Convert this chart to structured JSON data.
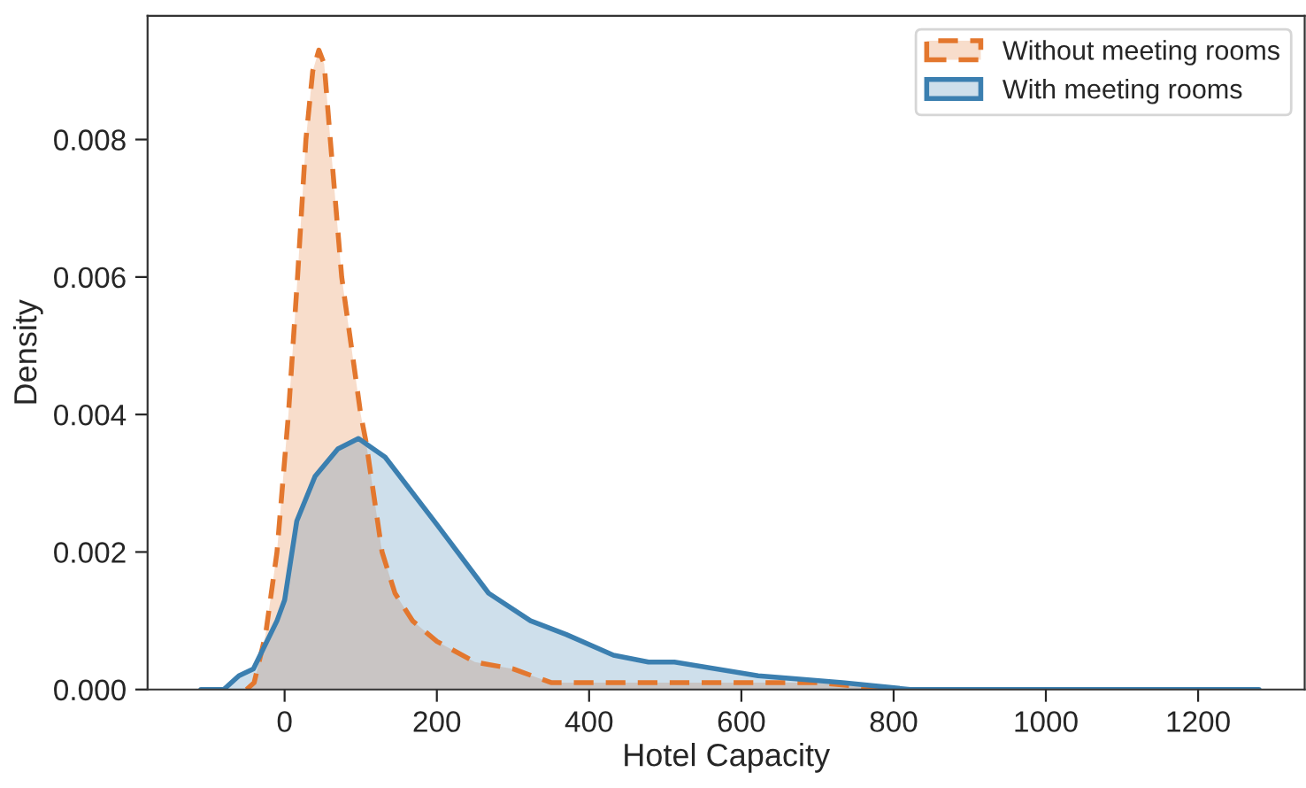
{
  "chart_data": {
    "type": "area",
    "xlabel": "Hotel Capacity",
    "ylabel": "Density",
    "xlim": [
      -180,
      1340
    ],
    "xticks": [
      0,
      200,
      400,
      600,
      800,
      1000,
      1200
    ],
    "ylim": [
      0,
      0.0098
    ],
    "yticks": [
      {
        "value": 0,
        "label": "0.000"
      },
      {
        "value": 0.002,
        "label": "0.002"
      },
      {
        "value": 0.004,
        "label": "0.004"
      },
      {
        "value": 0.006,
        "label": "0.006"
      },
      {
        "value": 0.008,
        "label": "0.008"
      }
    ],
    "grid": false,
    "legend": "top right",
    "series": [
      {
        "name": "Without meeting rooms",
        "color": "#e3772e",
        "line_style": "dashed",
        "x": [
          -50,
          -40,
          -25,
          -10,
          5,
          17,
          28,
          37,
          45,
          52,
          60,
          75,
          100,
          107,
          128,
          145,
          168,
          200,
          250,
          300,
          350,
          400,
          450,
          500,
          600,
          700,
          800,
          900,
          940
        ],
        "values": [
          0,
          0.0001,
          0.0008,
          0.002,
          0.004,
          0.006,
          0.008,
          0.009,
          0.0093,
          0.0091,
          0.008,
          0.006,
          0.004,
          0.0036,
          0.002,
          0.0014,
          0.001,
          0.0007,
          0.0004,
          0.0003,
          0.0001,
          0.0001,
          0.0001,
          0.0001,
          0.0001,
          0.0001,
          0,
          0,
          0
        ]
      },
      {
        "name": "With meeting rooms",
        "color": "#3b7fb0",
        "line_style": "solid",
        "x": [
          -110,
          -80,
          -60,
          -41,
          -10,
          0,
          16,
          40,
          70,
          97,
          132,
          200,
          268,
          323,
          370,
          432,
          478,
          512,
          622,
          733,
          822,
          900,
          1000,
          1100,
          1200,
          1280
        ],
        "values": [
          0,
          0,
          0.0002,
          0.0003,
          0.001,
          0.0013,
          0.00245,
          0.0031,
          0.0035,
          0.00365,
          0.00338,
          0.0024,
          0.0014,
          0.001,
          0.0008,
          0.0005,
          0.0004,
          0.0004,
          0.0002,
          0.0001,
          0,
          0,
          0,
          0,
          0,
          0
        ]
      }
    ]
  }
}
